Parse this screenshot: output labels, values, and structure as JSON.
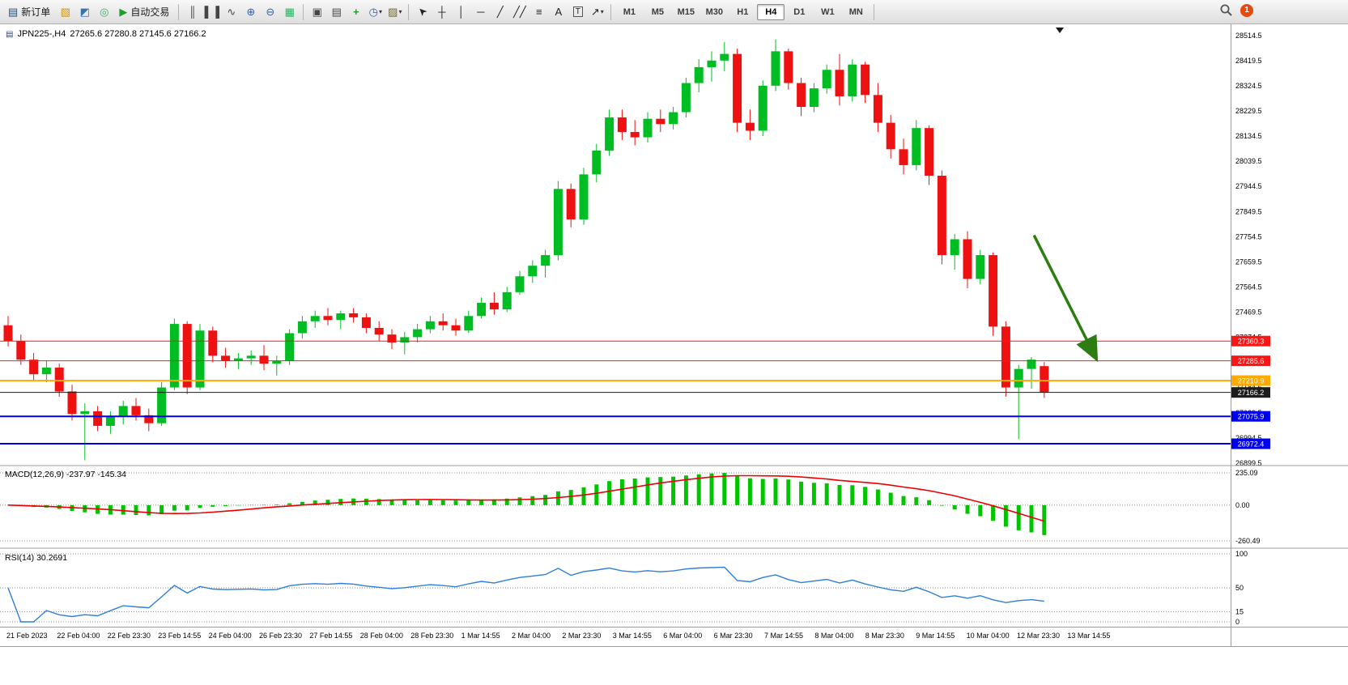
{
  "toolbar": {
    "new_order": {
      "label": "新订单",
      "icon_glyph": "▤",
      "icon_color": "#2c4a6e"
    },
    "icons_left": [
      {
        "name": "profiles-icon",
        "glyph": "▧",
        "color": "#d59300"
      },
      {
        "name": "market-watch-icon",
        "glyph": "◩",
        "color": "#3b6fb5"
      },
      {
        "name": "signals-icon",
        "glyph": "◎",
        "color": "#2fae62"
      }
    ],
    "autotrading": {
      "label": "自动交易",
      "icon_glyph": "▶",
      "icon_color": "#1d9e2f"
    },
    "icons_chart": [
      {
        "name": "bars-chart-icon",
        "glyph": "║",
        "color": "#444444"
      },
      {
        "name": "candlestick-chart-icon",
        "glyph": "▌▐",
        "color": "#444444"
      },
      {
        "name": "line-chart-icon",
        "glyph": "∿",
        "color": "#444444"
      },
      {
        "name": "zoom-in-icon",
        "glyph": "⊕",
        "color": "#2f5fb0"
      },
      {
        "name": "zoom-out-icon",
        "glyph": "⊖",
        "color": "#2f5fb0"
      },
      {
        "name": "tile-windows-icon",
        "glyph": "▦",
        "color": "#2fae62"
      }
    ],
    "icons_window": [
      {
        "name": "new-chart-icon",
        "glyph": "▣",
        "color": "#444444"
      },
      {
        "name": "chart-list-icon",
        "glyph": "▤",
        "color": "#444444"
      },
      {
        "name": "add-indicator-icon",
        "glyph": "+",
        "color": "#1d9e2f",
        "bold": true
      },
      {
        "name": "period-icon",
        "glyph": "◷",
        "color": "#2f5fb0",
        "caret": true
      },
      {
        "name": "template-icon",
        "glyph": "▨",
        "color": "#6a6a2f",
        "caret": true
      }
    ],
    "icons_draw": [
      {
        "name": "cursor-icon",
        "glyph": "➤",
        "color": "#222222",
        "rotate": -135
      },
      {
        "name": "crosshair-icon",
        "glyph": "┼",
        "color": "#222222"
      },
      {
        "name": "vertical-line-icon",
        "glyph": "│",
        "color": "#222222"
      },
      {
        "name": "horizontal-line-icon",
        "glyph": "─",
        "color": "#222222"
      },
      {
        "name": "trendline-icon",
        "glyph": "╱",
        "color": "#222222"
      },
      {
        "name": "channel-icon",
        "glyph": "╱╱",
        "color": "#222222"
      },
      {
        "name": "fibonacci-icon",
        "glyph": "≡",
        "color": "#222222"
      },
      {
        "name": "text-icon",
        "glyph": "A",
        "color": "#222222"
      },
      {
        "name": "text-label-icon",
        "glyph": "T",
        "color": "#222222",
        "boxed": true
      },
      {
        "name": "shapes-icon",
        "glyph": "↗",
        "color": "#222222",
        "caret": true
      }
    ],
    "timeframes": [
      {
        "label": "M1"
      },
      {
        "label": "M5"
      },
      {
        "label": "M15"
      },
      {
        "label": "M30"
      },
      {
        "label": "H1"
      },
      {
        "label": "H4",
        "active": true
      },
      {
        "label": "D1"
      },
      {
        "label": "W1"
      },
      {
        "label": "MN"
      }
    ],
    "badge_count": "1"
  },
  "chart": {
    "symbol_period": "JPN225-,H4",
    "ohlc_text": "27265.6 27280.8 27145.6 27166.2"
  },
  "chart_data": {
    "type": "candlestick",
    "symbol": "JPN225-",
    "timeframe": "H4",
    "quote": {
      "open": 27265.6,
      "high": 27280.8,
      "low": 27145.6,
      "close": 27166.2
    },
    "y_axis": {
      "min": 26893,
      "max": 28557,
      "tick_start": 26899.5,
      "tick_step": 95,
      "tick_count": 18
    },
    "x_dates": [
      "21 Feb 2023",
      "22 Feb 04:00",
      "22 Feb 23:30",
      "23 Feb 14:55",
      "24 Feb 04:00",
      "26 Feb 23:30",
      "27 Feb 14:55",
      "28 Feb 04:00",
      "28 Feb 23:30",
      "1 Mar 14:55",
      "2 Mar 04:00",
      "2 Mar 23:30",
      "3 Mar 14:55",
      "6 Mar 04:00",
      "6 Mar 23:30",
      "7 Mar 14:55",
      "8 Mar 04:00",
      "8 Mar 23:30",
      "9 Mar 14:55",
      "10 Mar 04:00",
      "12 Mar 23:30",
      "13 Mar 14:55"
    ],
    "colors": {
      "up": "#00bd23",
      "down": "#ee1111"
    },
    "candles": [
      [
        27420,
        27455,
        27340,
        27360
      ],
      [
        27360,
        27385,
        27270,
        27290
      ],
      [
        27290,
        27315,
        27210,
        27235
      ],
      [
        27235,
        27285,
        27205,
        27260
      ],
      [
        27260,
        27275,
        27150,
        27170
      ],
      [
        27170,
        27195,
        27060,
        27085
      ],
      [
        27085,
        27125,
        26910,
        27095
      ],
      [
        27095,
        27115,
        27020,
        27040
      ],
      [
        27040,
        27095,
        27010,
        27075
      ],
      [
        27075,
        27135,
        27045,
        27115
      ],
      [
        27115,
        27145,
        27060,
        27080
      ],
      [
        27080,
        27105,
        27020,
        27050
      ],
      [
        27050,
        27205,
        27040,
        27185
      ],
      [
        27185,
        27445,
        27175,
        27425
      ],
      [
        27425,
        27435,
        27160,
        27185
      ],
      [
        27185,
        27425,
        27175,
        27400
      ],
      [
        27400,
        27415,
        27280,
        27305
      ],
      [
        27305,
        27335,
        27260,
        27285
      ],
      [
        27285,
        27315,
        27255,
        27295
      ],
      [
        27295,
        27325,
        27270,
        27305
      ],
      [
        27305,
        27345,
        27250,
        27275
      ],
      [
        27275,
        27305,
        27230,
        27285
      ],
      [
        27285,
        27405,
        27270,
        27390
      ],
      [
        27390,
        27455,
        27370,
        27435
      ],
      [
        27435,
        27475,
        27410,
        27455
      ],
      [
        27455,
        27485,
        27420,
        27440
      ],
      [
        27440,
        27475,
        27405,
        27465
      ],
      [
        27465,
        27485,
        27430,
        27450
      ],
      [
        27450,
        27465,
        27390,
        27410
      ],
      [
        27410,
        27435,
        27360,
        27385
      ],
      [
        27385,
        27405,
        27330,
        27355
      ],
      [
        27355,
        27395,
        27310,
        27375
      ],
      [
        27375,
        27425,
        27355,
        27405
      ],
      [
        27405,
        27455,
        27390,
        27435
      ],
      [
        27435,
        27465,
        27400,
        27420
      ],
      [
        27420,
        27445,
        27380,
        27400
      ],
      [
        27400,
        27475,
        27390,
        27455
      ],
      [
        27455,
        27525,
        27445,
        27505
      ],
      [
        27505,
        27545,
        27460,
        27480
      ],
      [
        27480,
        27565,
        27470,
        27545
      ],
      [
        27545,
        27625,
        27535,
        27605
      ],
      [
        27605,
        27665,
        27580,
        27645
      ],
      [
        27645,
        27705,
        27600,
        27685
      ],
      [
        27685,
        27965,
        27665,
        27935
      ],
      [
        27935,
        27955,
        27790,
        27820
      ],
      [
        27820,
        28015,
        27800,
        27990
      ],
      [
        27990,
        28105,
        27960,
        28080
      ],
      [
        28080,
        28235,
        28060,
        28205
      ],
      [
        28205,
        28235,
        28120,
        28150
      ],
      [
        28150,
        28195,
        28100,
        28130
      ],
      [
        28130,
        28225,
        28110,
        28200
      ],
      [
        28200,
        28235,
        28150,
        28180
      ],
      [
        28180,
        28245,
        28160,
        28225
      ],
      [
        28225,
        28355,
        28205,
        28335
      ],
      [
        28335,
        28425,
        28300,
        28395
      ],
      [
        28395,
        28455,
        28340,
        28420
      ],
      [
        28420,
        28490,
        28380,
        28445
      ],
      [
        28445,
        28465,
        28150,
        28185
      ],
      [
        28185,
        28235,
        28120,
        28155
      ],
      [
        28155,
        28345,
        28135,
        28325
      ],
      [
        28325,
        28500,
        28305,
        28455
      ],
      [
        28455,
        28465,
        28310,
        28335
      ],
      [
        28335,
        28355,
        28210,
        28245
      ],
      [
        28245,
        28335,
        28225,
        28315
      ],
      [
        28315,
        28405,
        28295,
        28385
      ],
      [
        28385,
        28445,
        28250,
        28285
      ],
      [
        28285,
        28425,
        28265,
        28405
      ],
      [
        28405,
        28415,
        28260,
        28290
      ],
      [
        28290,
        28335,
        28150,
        28185
      ],
      [
        28185,
        28215,
        28050,
        28085
      ],
      [
        28085,
        28125,
        27990,
        28025
      ],
      [
        28025,
        28195,
        28005,
        28165
      ],
      [
        28165,
        28175,
        27950,
        27985
      ],
      [
        27985,
        28005,
        27650,
        27685
      ],
      [
        27685,
        27765,
        27630,
        27745
      ],
      [
        27745,
        27775,
        27560,
        27595
      ],
      [
        27595,
        27705,
        27575,
        27685
      ],
      [
        27685,
        27695,
        27380,
        27415
      ],
      [
        27415,
        27435,
        27150,
        27185
      ],
      [
        27185,
        27270,
        26990,
        27255
      ],
      [
        27255,
        27300,
        27180,
        27290
      ],
      [
        27265.6,
        27280.8,
        27145.6,
        27166.2
      ]
    ],
    "hlines": [
      {
        "price": 27360.3,
        "label": "27360.3",
        "color": "#ff1414",
        "width": 1
      },
      {
        "price": 27285.6,
        "label": "27285.6",
        "color": "#ff1414",
        "width": 1
      },
      {
        "price": 27210.9,
        "label": "27210.9",
        "color": "#ffaa00",
        "width": 2
      },
      {
        "price": 27166.2,
        "label": "27166.2",
        "color": "#1c1c1c",
        "width": 1,
        "current": true
      },
      {
        "price": 27075.9,
        "label": "27075.9",
        "color": "#0000ee",
        "width": 2
      },
      {
        "price": 26972.4,
        "label": "26972.4",
        "color": "#0000ee",
        "width": 2
      }
    ],
    "arrow": {
      "from_bar": 80.2,
      "from_price": 27760,
      "to_bar": 85.0,
      "to_price": 27300,
      "color": "#2e7d12"
    },
    "indicators": [
      {
        "name": "MACD",
        "label": "MACD(12,26,9) -237.97 -145.34",
        "params": {
          "fast": 12,
          "slow": 26,
          "signal": 9
        },
        "value_macd": -237.97,
        "value_signal": -145.34,
        "axis": {
          "max": 235.09,
          "min": -260.49
        },
        "axis_labels": [
          {
            "v": 235.09,
            "t": "235.09"
          },
          {
            "v": 0,
            "t": "0.00"
          },
          {
            "v": -260.49,
            "t": "-260.49"
          }
        ],
        "histogram_color": "#00c400",
        "signal_color": "#ee0000"
      },
      {
        "name": "RSI",
        "label": "RSI(14) 30.2691",
        "period": 14,
        "value": 30.2691,
        "axis": {
          "max": 100,
          "min": 0
        },
        "axis_labels": [
          {
            "v": 100,
            "t": "100"
          },
          {
            "v": 50,
            "t": "50"
          },
          {
            "v": 15,
            "t": "15"
          },
          {
            "v": 0,
            "t": "0"
          }
        ],
        "line_color": "#2f7ed8"
      }
    ]
  }
}
